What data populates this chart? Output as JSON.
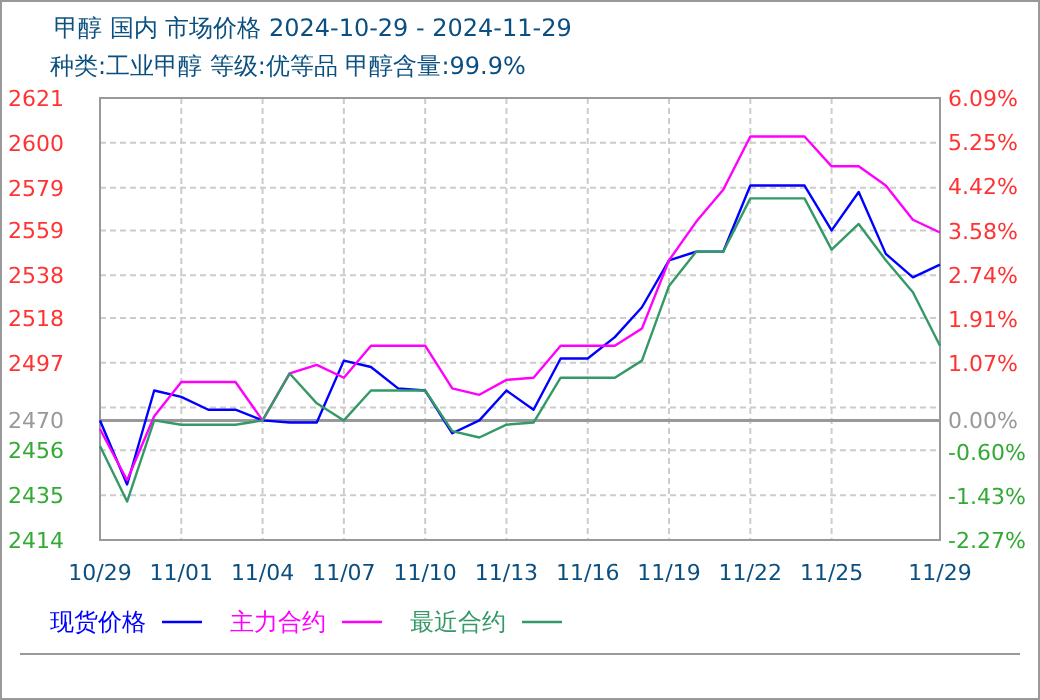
{
  "chart_data": {
    "type": "line",
    "title": "甲醇 国内 市场价格 2024-10-29 - 2024-11-29",
    "subtitle": "种类:工业甲醇 等级:优等品 甲醇含量:99.9%",
    "x": [
      "2024-10-29",
      "2024-10-30",
      "2024-10-31",
      "2024-11-01",
      "2024-11-02",
      "2024-11-03",
      "2024-11-04",
      "2024-11-05",
      "2024-11-06",
      "2024-11-07",
      "2024-11-08",
      "2024-11-09",
      "2024-11-10",
      "2024-11-11",
      "2024-11-12",
      "2024-11-13",
      "2024-11-14",
      "2024-11-15",
      "2024-11-16",
      "2024-11-17",
      "2024-11-18",
      "2024-11-19",
      "2024-11-20",
      "2024-11-21",
      "2024-11-22",
      "2024-11-23",
      "2024-11-24",
      "2024-11-25",
      "2024-11-26",
      "2024-11-27",
      "2024-11-28",
      "2024-11-29"
    ],
    "series": [
      {
        "name": "现货价格",
        "color": "#0000ff",
        "values": [
          2470,
          2440,
          2484,
          2481,
          2475,
          2475,
          2470,
          2469,
          2469,
          2498,
          2495,
          2485,
          2484,
          2464,
          2470,
          2484,
          2475,
          2499,
          2499,
          2509,
          2523,
          2545,
          2549,
          2549,
          2580,
          2580,
          2580,
          2559,
          2577,
          2548,
          2537,
          2543
        ]
      },
      {
        "name": "主力合约",
        "color": "#ff00ff",
        "values": [
          2466,
          2442,
          2472,
          2488,
          2488,
          2488,
          2470,
          2492,
          2496,
          2490,
          2505,
          2505,
          2505,
          2485,
          2482,
          2489,
          2490,
          2505,
          2505,
          2505,
          2513,
          2545,
          2563,
          2578,
          2603,
          2603,
          2603,
          2589,
          2589,
          2580,
          2564,
          2558
        ]
      },
      {
        "name": "最近合约",
        "color": "#339966",
        "values": [
          2458,
          2432,
          2470,
          2468,
          2468,
          2468,
          2470,
          2492,
          2478,
          2470,
          2484,
          2484,
          2484,
          2465,
          2462,
          2468,
          2469,
          2490,
          2490,
          2490,
          2498,
          2533,
          2549,
          2549,
          2574,
          2574,
          2574,
          2550,
          2562,
          2545,
          2530,
          2505
        ]
      }
    ],
    "xlim": [
      "2024-10-29",
      "2024-11-29"
    ],
    "xticks": [
      {
        "value": "2024-10-29",
        "label": "10/29"
      },
      {
        "value": "2024-11-01",
        "label": "11/01"
      },
      {
        "value": "2024-11-04",
        "label": "11/04"
      },
      {
        "value": "2024-11-07",
        "label": "11/07"
      },
      {
        "value": "2024-11-10",
        "label": "11/10"
      },
      {
        "value": "2024-11-13",
        "label": "11/13"
      },
      {
        "value": "2024-11-16",
        "label": "11/16"
      },
      {
        "value": "2024-11-19",
        "label": "11/19"
      },
      {
        "value": "2024-11-22",
        "label": "11/22"
      },
      {
        "value": "2024-11-25",
        "label": "11/25"
      },
      {
        "value": "2024-11-29",
        "label": "11/29"
      }
    ],
    "ylim": [
      2414,
      2621
    ],
    "yticks": [
      2414,
      2435,
      2456,
      {
        "value": 2476,
        "label": null
      },
      2497,
      2518,
      2538,
      2559,
      2579,
      2600,
      2621
    ],
    "y2lim": [
      -2.27,
      6.09
    ],
    "y2ticks": [
      {
        "value": -2.27,
        "label": "-2.27%"
      },
      {
        "value": -1.43,
        "label": "-1.43%"
      },
      {
        "value": -0.6,
        "label": "-0.60%"
      },
      {
        "value": 0,
        "label": "0.00%"
      },
      {
        "value": 1.07,
        "label": "1.07%"
      },
      {
        "value": 1.91,
        "label": "1.91%"
      },
      {
        "value": 2.74,
        "label": "2.74%"
      },
      {
        "value": 3.58,
        "label": "3.58%"
      },
      {
        "value": 4.42,
        "label": "4.42%"
      },
      {
        "value": 5.25,
        "label": "5.25%"
      },
      {
        "value": 6.09,
        "label": "6.09%"
      }
    ],
    "ref_lines": [
      {
        "axis": "y",
        "value": 2470,
        "label": "2470",
        "color": "#999999"
      }
    ],
    "grid": true,
    "legend": "bottom"
  }
}
